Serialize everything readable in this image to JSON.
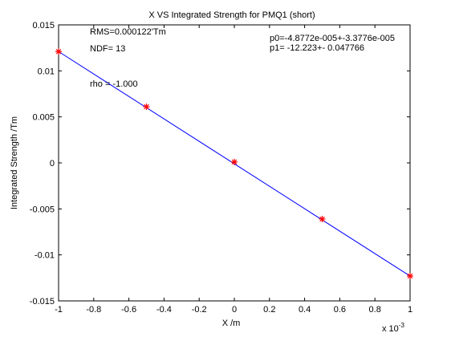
{
  "chart_data": {
    "type": "scatter",
    "title": "X VS Integrated Strength for PMQ1 (short)",
    "xlabel": "X /m",
    "ylabel": "Integrated Strength /Tm",
    "x_exponent": "x 10",
    "x_exponent_power": "-3",
    "xlim": [
      -1,
      1
    ],
    "ylim": [
      -0.015,
      0.015
    ],
    "x_ticks": [
      -1,
      -0.8,
      -0.6,
      -0.4,
      -0.2,
      0,
      0.2,
      0.4,
      0.6,
      0.8,
      1
    ],
    "x_tick_labels": [
      "-1",
      "-0.8",
      "-0.6",
      "-0.4",
      "-0.2",
      "0",
      "0.2",
      "0.4",
      "0.6",
      "0.8",
      "1"
    ],
    "y_ticks": [
      0.015,
      0.01,
      0.005,
      0,
      -0.005,
      -0.01,
      -0.015
    ],
    "y_tick_labels": [
      "0.015",
      "0.01",
      "0.005",
      "0",
      "-0.005",
      "-0.01",
      "-0.015"
    ],
    "grid": false,
    "series": [
      {
        "kind": "points",
        "marker": "*",
        "color": "#ff0000",
        "points": [
          {
            "x": -1.0,
            "y": 0.0121
          },
          {
            "x": -0.5,
            "y": 0.0061
          },
          {
            "x": 0.0,
            "y": 0.0001
          },
          {
            "x": 0.5,
            "y": -0.0061
          },
          {
            "x": 1.0,
            "y": -0.0123
          }
        ]
      },
      {
        "kind": "line",
        "color": "#0000ff",
        "points": [
          {
            "x": -1.0,
            "y": 0.0121
          },
          {
            "x": 1.0,
            "y": -0.0123
          }
        ]
      }
    ],
    "annotations": {
      "rms": "RMS=0.000122'Tm",
      "ndf": "NDF=   13",
      "rho": "rho     = -1.000",
      "p0": "p0=-4.8772e-005+-3.3776e-005",
      "p1": "p1=  -12.223+- 0.047766"
    }
  },
  "colors": {
    "background": "#ffffff",
    "axes": "#000000",
    "fit_line": "#0000ff",
    "markers": "#ff0000"
  }
}
